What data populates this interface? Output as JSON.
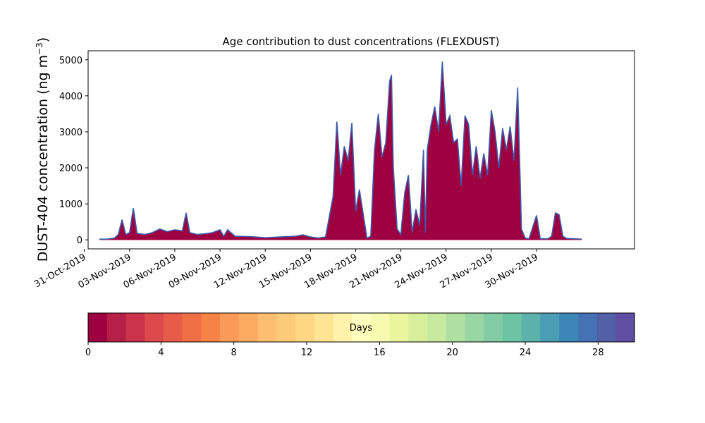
{
  "chart_data": {
    "type": "area",
    "stacked": true,
    "title": "Age contribution to dust concentrations (FLEXDUST)",
    "ylabel": "DUST-404 concentration (ng m",
    "ylabel_unit_sup": "−3",
    "ylabel_close": ")",
    "ylim": [
      -250,
      5250
    ],
    "yticks": [
      0,
      1000,
      2000,
      3000,
      4000,
      5000
    ],
    "ytick_labels": [
      "0",
      "1000",
      "2000",
      "3000",
      "4000",
      "5000"
    ],
    "xlim": [
      "2019-10-31T06:00",
      "2019-12-06T12:00"
    ],
    "xtick_labels": [
      "31-Oct-2019",
      "03-Nov-2019",
      "06-Nov-2019",
      "09-Nov-2019",
      "12-Nov-2019",
      "15-Nov-2019",
      "18-Nov-2019",
      "21-Nov-2019",
      "24-Nov-2019",
      "27-Nov-2019",
      "30-Nov-2019"
    ],
    "xtick_dates": [
      "2019-10-31",
      "2019-11-03",
      "2019-11-06",
      "2019-11-09",
      "2019-11-12",
      "2019-11-15",
      "2019-11-18",
      "2019-11-21",
      "2019-11-24",
      "2019-11-27",
      "2019-11-30"
    ],
    "total_series": {
      "name": "total",
      "points": [
        [
          "2019-11-01T00:00",
          20
        ],
        [
          "2019-11-01T12:00",
          20
        ],
        [
          "2019-11-02T00:00",
          50
        ],
        [
          "2019-11-02T06:00",
          150
        ],
        [
          "2019-11-02T12:00",
          560
        ],
        [
          "2019-11-02T18:00",
          150
        ],
        [
          "2019-11-03T00:00",
          200
        ],
        [
          "2019-11-03T06:00",
          880
        ],
        [
          "2019-11-03T12:00",
          180
        ],
        [
          "2019-11-04T00:00",
          150
        ],
        [
          "2019-11-04T12:00",
          200
        ],
        [
          "2019-11-05T00:00",
          300
        ],
        [
          "2019-11-05T12:00",
          230
        ],
        [
          "2019-11-06T00:00",
          280
        ],
        [
          "2019-11-06T12:00",
          250
        ],
        [
          "2019-11-06T18:00",
          750
        ],
        [
          "2019-11-07T00:00",
          200
        ],
        [
          "2019-11-07T12:00",
          150
        ],
        [
          "2019-11-08T00:00",
          170
        ],
        [
          "2019-11-08T12:00",
          200
        ],
        [
          "2019-11-09T00:00",
          280
        ],
        [
          "2019-11-09T06:00",
          100
        ],
        [
          "2019-11-09T12:00",
          280
        ],
        [
          "2019-11-10T00:00",
          100
        ],
        [
          "2019-11-11T00:00",
          90
        ],
        [
          "2019-11-12T00:00",
          60
        ],
        [
          "2019-11-13T00:00",
          80
        ],
        [
          "2019-11-14T00:00",
          100
        ],
        [
          "2019-11-14T12:00",
          140
        ],
        [
          "2019-11-15T00:00",
          80
        ],
        [
          "2019-11-15T12:00",
          50
        ],
        [
          "2019-11-16T00:00",
          80
        ],
        [
          "2019-11-16T12:00",
          1200
        ],
        [
          "2019-11-16T18:00",
          3280
        ],
        [
          "2019-11-17T00:00",
          1800
        ],
        [
          "2019-11-17T06:00",
          2600
        ],
        [
          "2019-11-17T12:00",
          2200
        ],
        [
          "2019-11-17T18:00",
          3250
        ],
        [
          "2019-11-18T00:00",
          800
        ],
        [
          "2019-11-18T06:00",
          1400
        ],
        [
          "2019-11-18T18:00",
          50
        ],
        [
          "2019-11-19T00:00",
          100
        ],
        [
          "2019-11-19T06:00",
          2500
        ],
        [
          "2019-11-19T12:00",
          3500
        ],
        [
          "2019-11-19T18:00",
          2300
        ],
        [
          "2019-11-20T00:00",
          2700
        ],
        [
          "2019-11-20T06:00",
          4400
        ],
        [
          "2019-11-20T09:00",
          4580
        ],
        [
          "2019-11-20T12:00",
          2000
        ],
        [
          "2019-11-20T18:00",
          300
        ],
        [
          "2019-11-21T00:00",
          150
        ],
        [
          "2019-11-21T06:00",
          1300
        ],
        [
          "2019-11-21T12:00",
          1800
        ],
        [
          "2019-11-21T18:00",
          200
        ],
        [
          "2019-11-22T00:00",
          850
        ],
        [
          "2019-11-22T06:00",
          400
        ],
        [
          "2019-11-22T12:00",
          2500
        ],
        [
          "2019-11-22T15:00",
          200
        ],
        [
          "2019-11-22T18:00",
          2500
        ],
        [
          "2019-11-23T00:00",
          3200
        ],
        [
          "2019-11-23T06:00",
          3700
        ],
        [
          "2019-11-23T12:00",
          3000
        ],
        [
          "2019-11-23T18:00",
          4950
        ],
        [
          "2019-11-24T00:00",
          3200
        ],
        [
          "2019-11-24T06:00",
          3450
        ],
        [
          "2019-11-24T12:00",
          2700
        ],
        [
          "2019-11-24T18:00",
          2800
        ],
        [
          "2019-11-25T00:00",
          1500
        ],
        [
          "2019-11-25T06:00",
          3450
        ],
        [
          "2019-11-25T12:00",
          3200
        ],
        [
          "2019-11-25T18:00",
          1800
        ],
        [
          "2019-11-26T00:00",
          2600
        ],
        [
          "2019-11-26T06:00",
          1700
        ],
        [
          "2019-11-26T12:00",
          2400
        ],
        [
          "2019-11-26T18:00",
          1800
        ],
        [
          "2019-11-27T00:00",
          3600
        ],
        [
          "2019-11-27T06:00",
          3000
        ],
        [
          "2019-11-27T12:00",
          2000
        ],
        [
          "2019-11-27T18:00",
          3100
        ],
        [
          "2019-11-28T00:00",
          2500
        ],
        [
          "2019-11-28T06:00",
          3150
        ],
        [
          "2019-11-28T12:00",
          2200
        ],
        [
          "2019-11-28T18:00",
          4230
        ],
        [
          "2019-11-29T00:00",
          300
        ],
        [
          "2019-11-29T06:00",
          50
        ],
        [
          "2019-11-29T12:00",
          30
        ],
        [
          "2019-11-30T00:00",
          680
        ],
        [
          "2019-11-30T06:00",
          30
        ],
        [
          "2019-11-30T18:00",
          30
        ],
        [
          "2019-12-01T00:00",
          100
        ],
        [
          "2019-12-01T06:00",
          750
        ],
        [
          "2019-12-01T12:00",
          700
        ],
        [
          "2019-12-01T18:00",
          100
        ],
        [
          "2019-12-02T00:00",
          40
        ],
        [
          "2019-12-02T12:00",
          30
        ],
        [
          "2019-12-03T00:00",
          20
        ]
      ]
    },
    "colorbar": {
      "label": "Days",
      "min": 0,
      "max": 30,
      "ticks": [
        0,
        4,
        8,
        12,
        16,
        20,
        24,
        28
      ],
      "tick_labels": [
        "0",
        "4",
        "8",
        "12",
        "16",
        "20",
        "24",
        "28"
      ],
      "colors": [
        "#9e0142",
        "#b51f48",
        "#cb334c",
        "#dc494b",
        "#e85b48",
        "#f06e44",
        "#f68245",
        "#fa9a58",
        "#fcaa5f",
        "#fdbf6f",
        "#fdca79",
        "#fed785",
        "#fee593",
        "#fff2aa",
        "#fffebe",
        "#f6fbb0",
        "#e9f69d",
        "#d7ef9b",
        "#c7e9a0",
        "#b0dfa2",
        "#98d6a4",
        "#81cca5",
        "#6cc4a5",
        "#5cb1ab",
        "#4a9db2",
        "#3d87b8",
        "#4572b3",
        "#5360a8",
        "#5e4fa2"
      ]
    },
    "legend": "none",
    "grid": false
  }
}
